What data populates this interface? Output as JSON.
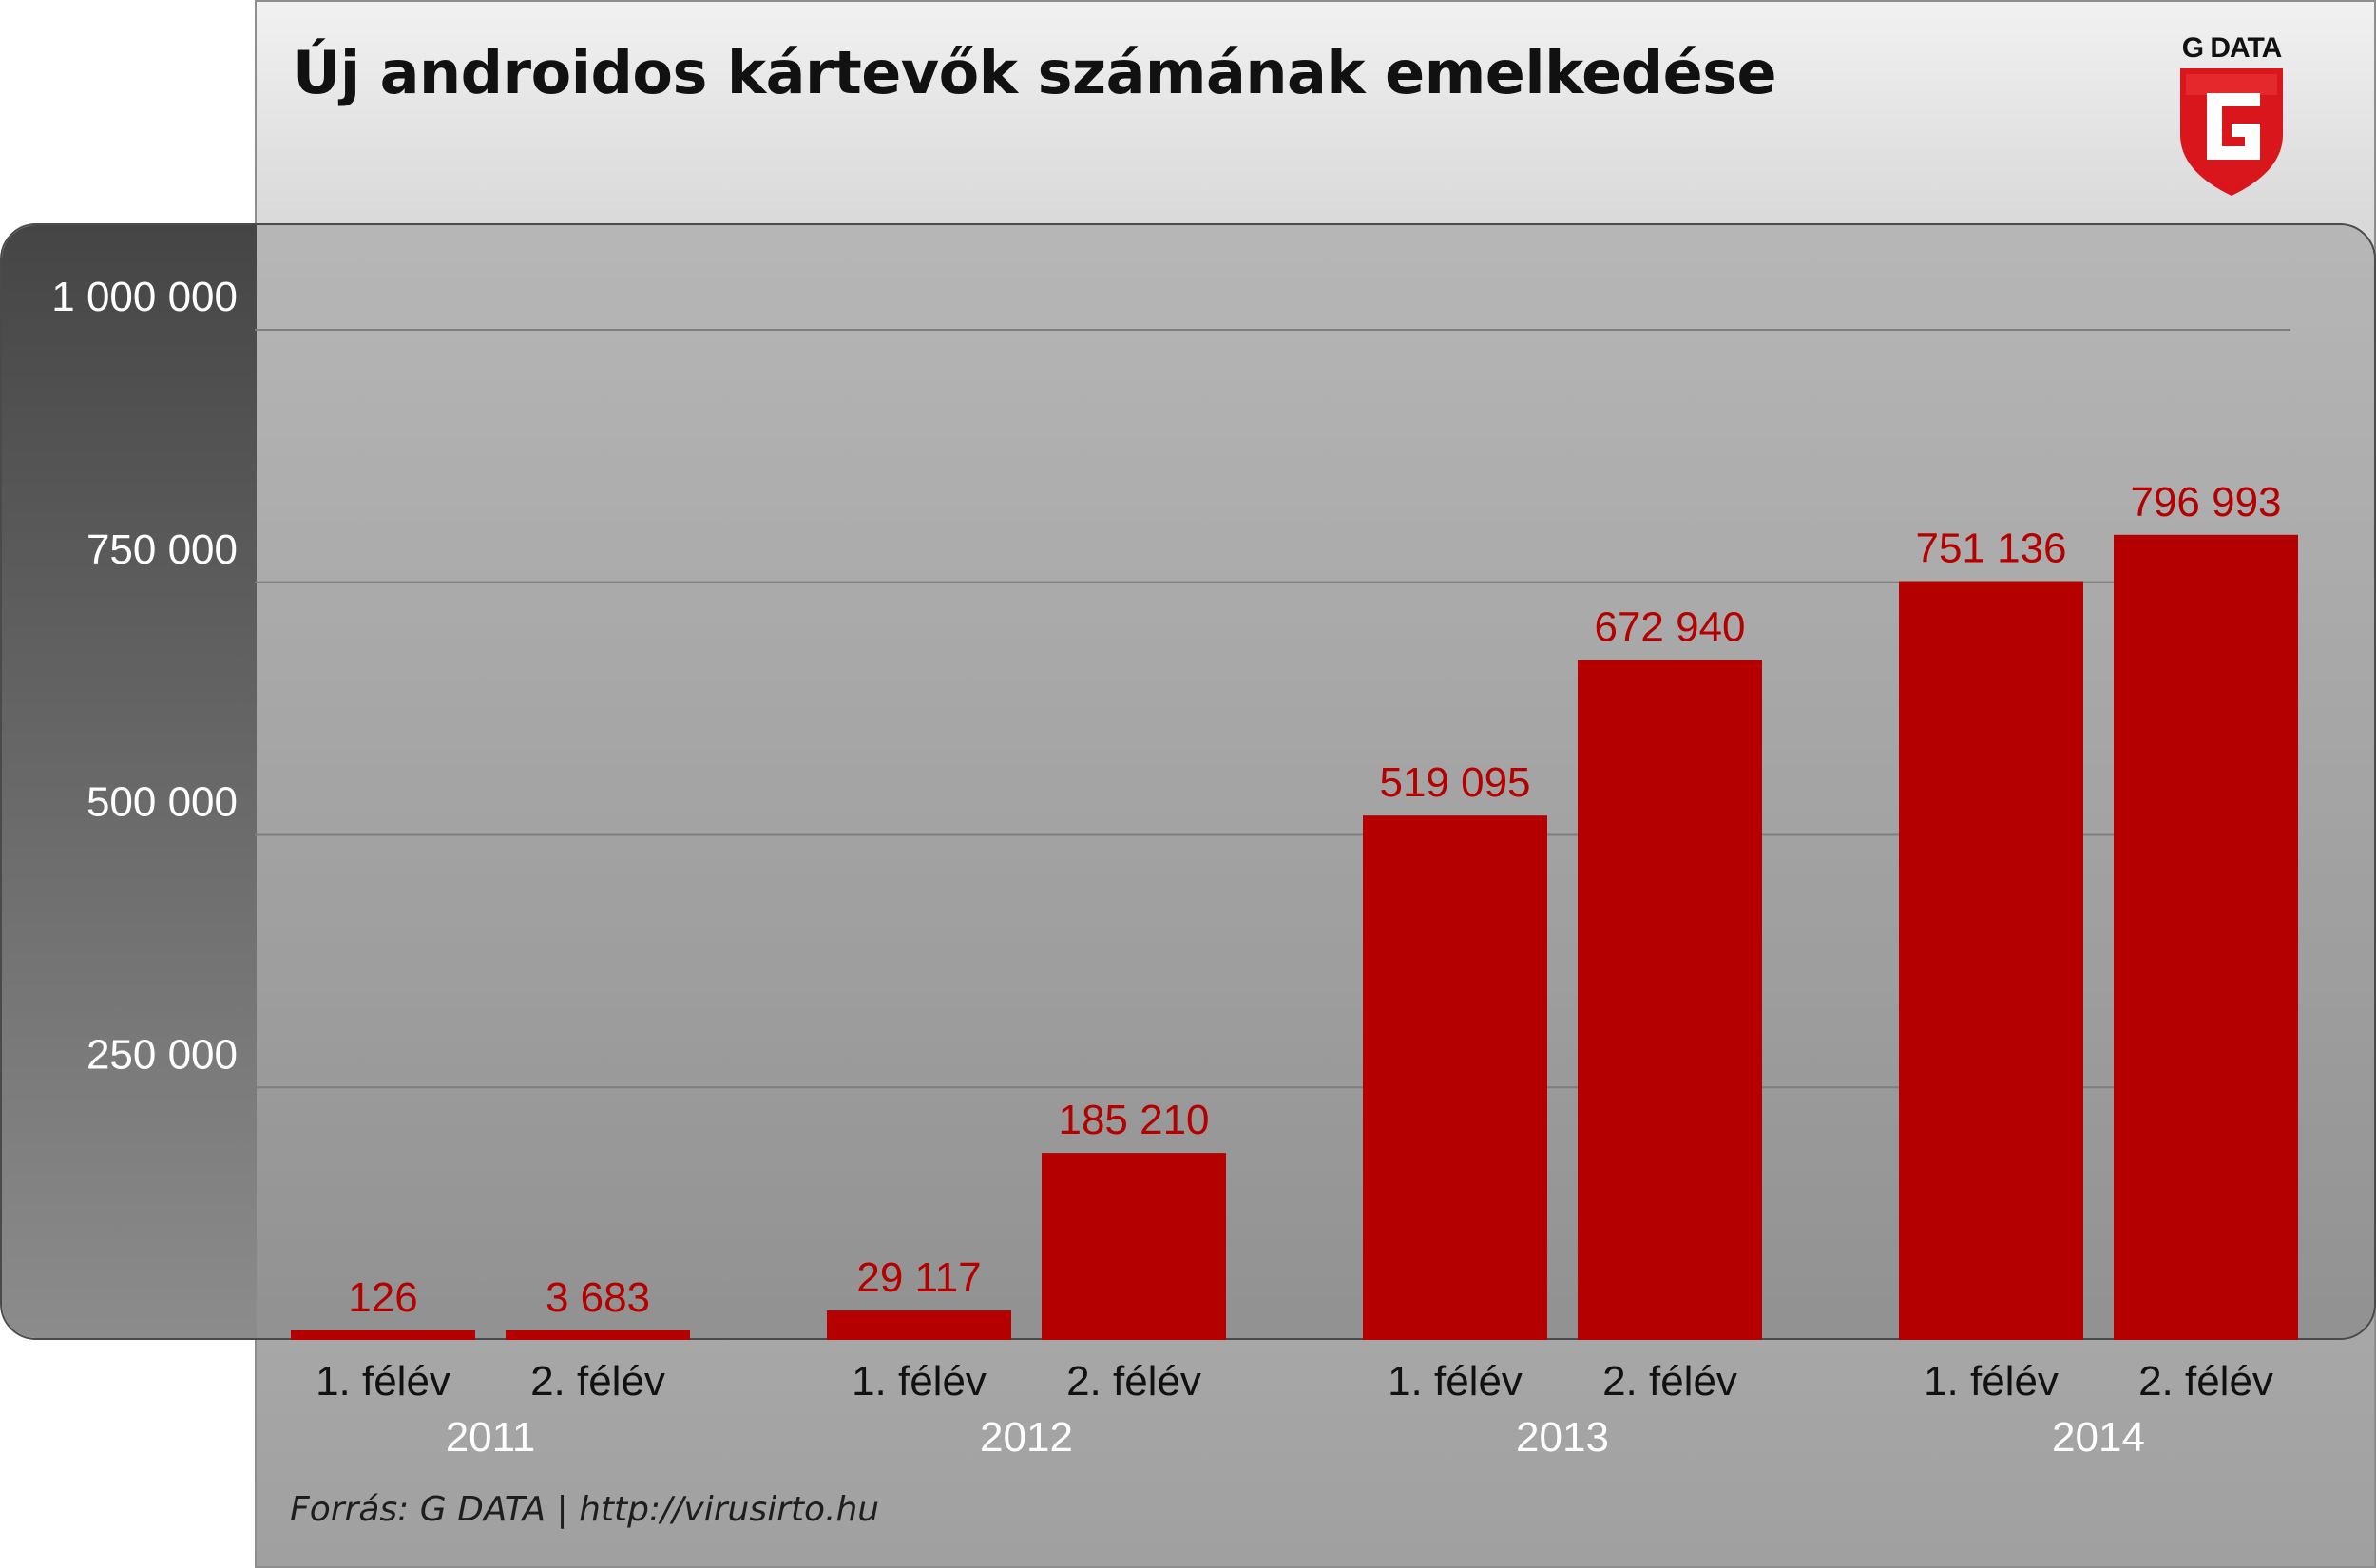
{
  "title": "Új androidos kártevők számának emelkedése",
  "logo_text": "G DATA",
  "source": "Forrás: G DATA | http://virusirto.hu",
  "colors": {
    "bar": "#b50000",
    "value_label": "#b50000",
    "logo_red": "#d8161b"
  },
  "chart_data": {
    "type": "bar",
    "title": "Új androidos kártevők számának emelkedése",
    "xlabel": "",
    "ylabel": "",
    "ylim": [
      0,
      1000000
    ],
    "y_ticks": [
      250000,
      500000,
      750000,
      1000000
    ],
    "y_tick_labels": [
      "250 000",
      "500 000",
      "750 000",
      "1 000 000"
    ],
    "grid": true,
    "groups": [
      {
        "year": "2011",
        "bars": [
          {
            "label": "1. félév",
            "value": 126,
            "value_label": "126"
          },
          {
            "label": "2. félév",
            "value": 3683,
            "value_label": "3 683"
          }
        ]
      },
      {
        "year": "2012",
        "bars": [
          {
            "label": "1. félév",
            "value": 29117,
            "value_label": "29 117"
          },
          {
            "label": "2. félév",
            "value": 185210,
            "value_label": "185 210"
          }
        ]
      },
      {
        "year": "2013",
        "bars": [
          {
            "label": "1. félév",
            "value": 519095,
            "value_label": "519 095"
          },
          {
            "label": "2. félév",
            "value": 672940,
            "value_label": "672 940"
          }
        ]
      },
      {
        "year": "2014",
        "bars": [
          {
            "label": "1. félév",
            "value": 751136,
            "value_label": "751 136"
          },
          {
            "label": "2. félév",
            "value": 796993,
            "value_label": "796 993"
          }
        ]
      }
    ]
  }
}
